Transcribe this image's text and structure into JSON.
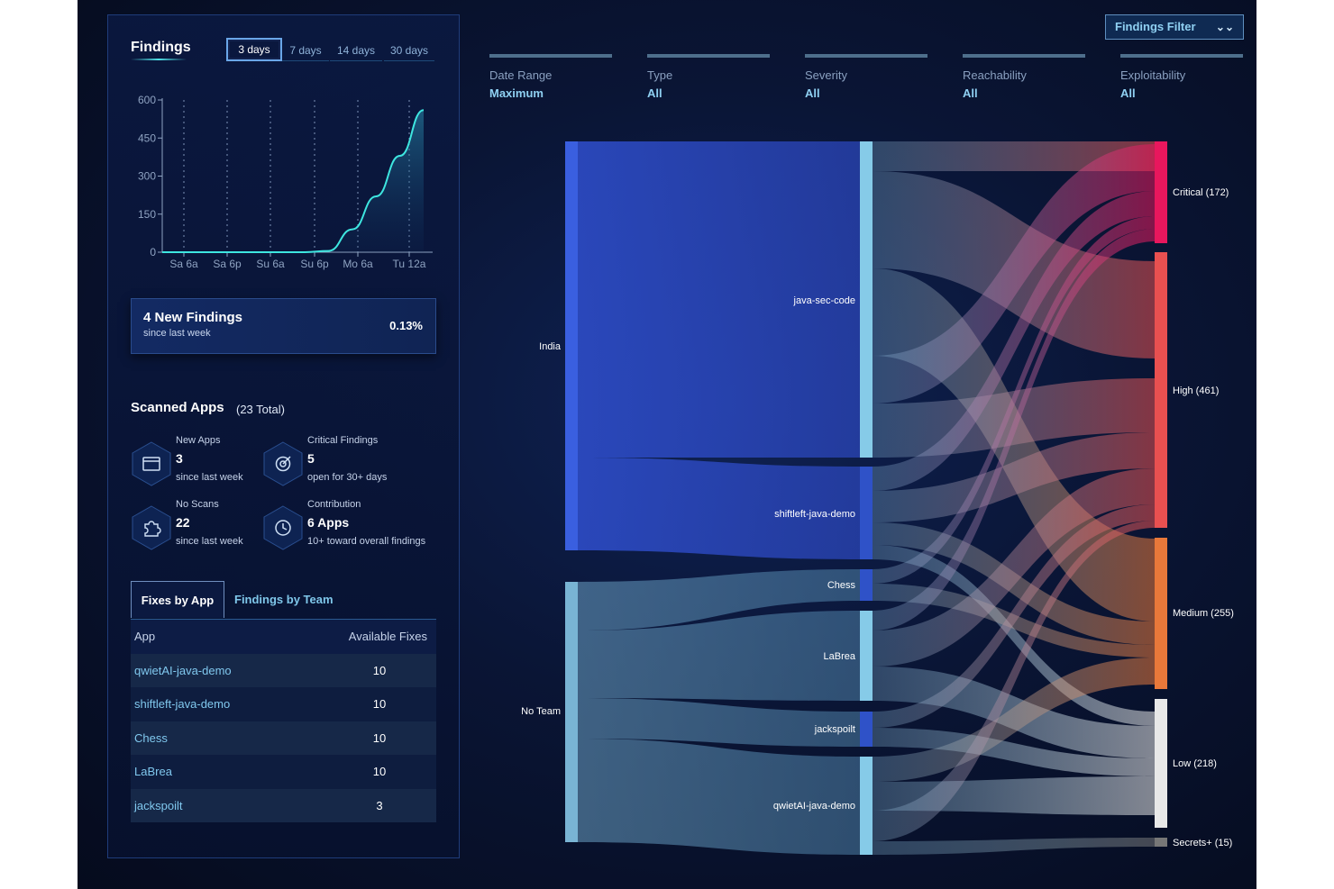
{
  "findings": {
    "title": "Findings",
    "ranges": [
      "3 days",
      "7 days",
      "14 days",
      "30 days"
    ],
    "active_range": "3 days",
    "chart_data": {
      "type": "area",
      "y_ticks": [
        "600",
        "450",
        "300",
        "150",
        "0"
      ],
      "x_ticks": [
        "Sa 6a",
        "Sa 6p",
        "Su 6a",
        "Su 6p",
        "Mo 6a",
        "Tu 12a"
      ],
      "ylim": [
        0,
        600
      ],
      "series": [
        {
          "values": [
            0,
            0,
            0,
            0,
            0,
            0,
            0,
            5,
            90,
            220,
            380,
            560
          ]
        }
      ]
    }
  },
  "summary": {
    "title": "4 New Findings",
    "subtitle": "since last week",
    "percent": "0.13%"
  },
  "scanned_apps": {
    "title": "Scanned Apps",
    "total": "(23 Total)",
    "stats": [
      {
        "label": "New Apps",
        "value": "3",
        "sub": "since last week",
        "icon": "browser-window-icon"
      },
      {
        "label": "Critical Findings",
        "value": "5",
        "sub": "open for 30+ days",
        "icon": "target-icon"
      },
      {
        "label": "No Scans",
        "value": "22",
        "sub": "since last week",
        "icon": "puzzle-icon"
      },
      {
        "label": "Contribution",
        "value": "6 Apps",
        "sub": "10+ toward overall findings",
        "icon": "clock-icon"
      }
    ]
  },
  "fixes": {
    "tabs": [
      "Fixes by App",
      "Findings by Team"
    ],
    "columns": [
      "App",
      "Available Fixes"
    ],
    "rows": [
      {
        "app": "qwietAI-java-demo",
        "fixes": "10"
      },
      {
        "app": "shiftleft-java-demo",
        "fixes": "10"
      },
      {
        "app": "Chess",
        "fixes": "10"
      },
      {
        "app": "LaBrea",
        "fixes": "10"
      },
      {
        "app": "jackspoilt",
        "fixes": "3"
      }
    ]
  },
  "filter": {
    "button_label": "Findings Filter",
    "facets": [
      {
        "label": "Date Range",
        "value": "Maximum"
      },
      {
        "label": "Type",
        "value": "All"
      },
      {
        "label": "Severity",
        "value": "All"
      },
      {
        "label": "Reachability",
        "value": "All"
      },
      {
        "label": "Exploitability",
        "value": "All"
      }
    ]
  },
  "sankey": {
    "teams": [
      "India",
      "No Team"
    ],
    "apps": [
      "java-sec-code",
      "shiftleft-java-demo",
      "Chess",
      "LaBrea",
      "jackspoilt",
      "qwietAI-java-demo"
    ],
    "severities": [
      "Critical (172)",
      "High (461)",
      "Medium (255)",
      "Low (218)",
      "Secrets+ (15)"
    ],
    "colors": {
      "team": "#3a5fe0",
      "no_team": "#79b4d4",
      "app": "#86cbe8",
      "app_dark": "#2f52c8",
      "critical": "#e8175d",
      "high": "#e85050",
      "medium": "#e8783a",
      "low": "#e8e8e8",
      "secrets": "#777777"
    }
  }
}
